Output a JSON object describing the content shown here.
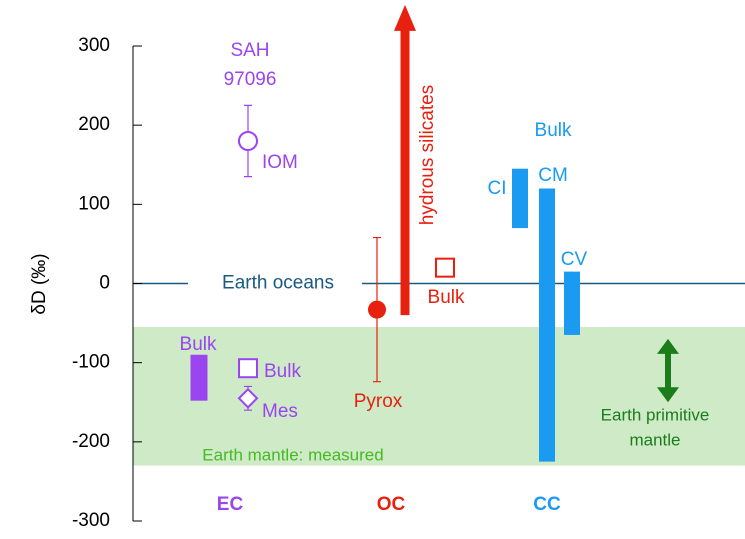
{
  "chart_data": {
    "type": "range",
    "ylabel": "δD (‰)",
    "ylim": [
      -300,
      300
    ],
    "yticks": [
      300,
      200,
      100,
      0,
      -100,
      -200,
      -300
    ],
    "categories": [
      "EC",
      "OC",
      "CC"
    ],
    "category_colors": [
      "#9b45f0",
      "#e8200f",
      "#1a9af0"
    ],
    "bands": [
      {
        "name": "Earth mantle: measured",
        "low": -230,
        "high": -55,
        "color": "#cfeac6",
        "label_color": "#44bb22"
      }
    ],
    "hlines": [
      {
        "name": "Earth oceans",
        "value": 0,
        "color": "#1b5a80"
      }
    ],
    "series": [
      {
        "name": "Bulk",
        "kind": "bar",
        "low": -148,
        "high": -90,
        "color": "#9b45f0"
      },
      {
        "name": "Bulk",
        "kind": "open-square",
        "value": -107,
        "color": "#9b45f0"
      },
      {
        "name": "Mes",
        "kind": "open-diamond",
        "value": -145,
        "error": 15,
        "color": "#9b45f0"
      },
      {
        "name": "IOM",
        "sample": [
          "SAH",
          "97096"
        ],
        "kind": "open-circle",
        "value": 180,
        "error": 45,
        "color": "#9b45f0"
      },
      {
        "name": "Pyrox",
        "kind": "filled-circle",
        "value": -33,
        "error": 91,
        "color": "#e8200f"
      },
      {
        "name": "Bulk",
        "kind": "open-square",
        "value": 20,
        "color": "#e8200f"
      },
      {
        "name": "hydrous silicates",
        "kind": "arrow",
        "low": -40,
        "high": 352,
        "color": "#e8200f"
      },
      {
        "name": "CI",
        "kind": "bar",
        "low": 70,
        "high": 145,
        "color": "#1a9af0"
      },
      {
        "name": "CM",
        "kind": "bar",
        "low": -225,
        "high": 120,
        "color": "#1a9af0"
      },
      {
        "name": "CV",
        "kind": "bar",
        "low": -65,
        "high": 15,
        "color": "#1a9af0"
      },
      {
        "name": [
          "Earth primitive",
          "mantle"
        ],
        "kind": "double-arrow",
        "low": -150,
        "high": -70,
        "color": "#1a7d1a"
      }
    ],
    "annotations": [
      {
        "text": "Bulk",
        "color": "#1a9af0"
      }
    ]
  }
}
